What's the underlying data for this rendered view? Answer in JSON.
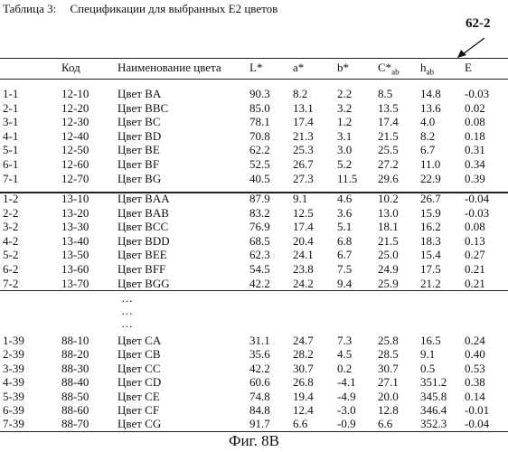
{
  "caption": {
    "label": "Таблица 3:",
    "title": "Спецификации для выбранных E2 цветов"
  },
  "ref_label": "62-2",
  "header": [
    "",
    "Код",
    "Наименование цвета",
    "L*",
    "a*",
    "b*",
    "C*ab",
    "hab",
    "E"
  ],
  "group1": [
    [
      "1-1",
      "12-10",
      "Цвет BA",
      "90.3",
      "8.2",
      "2.2",
      "8.5",
      "14.8",
      "-0.03"
    ],
    [
      "2-1",
      "12-20",
      "Цвет BBC",
      "85.0",
      "13.1",
      "3.2",
      "13.5",
      "13.6",
      "0.02"
    ],
    [
      "3-1",
      "12-30",
      "Цвет BC",
      "78.1",
      "17.4",
      "1.2",
      "17.4",
      "4.0",
      "0.08"
    ],
    [
      "4-1",
      "12-40",
      "Цвет BD",
      "70.8",
      "21.3",
      "3.1",
      "21.5",
      "8.2",
      "0.18"
    ],
    [
      "5-1",
      "12-50",
      "Цвет BE",
      "62.2",
      "25.3",
      "3.0",
      "25.5",
      "6.7",
      "0.31"
    ],
    [
      "6-1",
      "12-60",
      "Цвет BF",
      "52.5",
      "26.7",
      "5.2",
      "27.2",
      "11.0",
      "0.34"
    ],
    [
      "7-1",
      "12-70",
      "Цвет BG",
      "40.5",
      "27.3",
      "11.5",
      "29.6",
      "22.9",
      "0.39"
    ]
  ],
  "group2": [
    [
      "1-2",
      "13-10",
      "Цвет BAA",
      "87.9",
      "9.1",
      "4.6",
      "10.2",
      "26.7",
      "-0.04"
    ],
    [
      "2-2",
      "13-20",
      "Цвет BAB",
      "83.2",
      "12.5",
      "3.6",
      "13.0",
      "15.9",
      "-0.03"
    ],
    [
      "3-2",
      "13-30",
      "Цвет BCC",
      "76.9",
      "17.4",
      "5.1",
      "18.1",
      "16.2",
      "0.08"
    ],
    [
      "4-2",
      "13-40",
      "Цвет BDD",
      "68.5",
      "20.4",
      "6.8",
      "21.5",
      "18.3",
      "0.13"
    ],
    [
      "5-2",
      "13-50",
      "Цвет BEE",
      "62.3",
      "24.1",
      "6.7",
      "25.0",
      "15.4",
      "0.27"
    ],
    [
      "6-2",
      "13-60",
      "Цвет BFF",
      "54.5",
      "23.8",
      "7.5",
      "24.9",
      "17.5",
      "0.21"
    ],
    [
      "7-2",
      "13-70",
      "Цвет BGG",
      "42.2",
      "24.2",
      "9.4",
      "25.9",
      "21.2",
      "0.21"
    ]
  ],
  "ellipsis": [
    "…",
    "…",
    "…"
  ],
  "group3": [
    [
      "1-39",
      "88-10",
      "Цвет CA",
      "31.1",
      "24.7",
      "7.3",
      "25.8",
      "16.5",
      "0.24"
    ],
    [
      "2-39",
      "88-20",
      "Цвет CB",
      "35.6",
      "28.2",
      "4.5",
      "28.5",
      "9.1",
      "0.40"
    ],
    [
      "3-39",
      "88-30",
      "Цвет CC",
      "42.2",
      "30.7",
      "0.2",
      "30.7",
      "0.5",
      "0.53"
    ],
    [
      "4-39",
      "88-40",
      "Цвет CD",
      "60.6",
      "26.8",
      "-4.1",
      "27.1",
      "351.2",
      "0.38"
    ],
    [
      "5-39",
      "88-50",
      "Цвет CE",
      "74.8",
      "19.4",
      "-4.9",
      "20.0",
      "345.8",
      "0.14"
    ],
    [
      "6-39",
      "88-60",
      "Цвет CF",
      "84.8",
      "12.4",
      "-3.0",
      "12.8",
      "346.4",
      "-0.01"
    ],
    [
      "7-39",
      "88-70",
      "Цвет CG",
      "91.7",
      "6.6",
      "-0.9",
      "6.6",
      "352.3",
      "-0.04"
    ]
  ],
  "figure_label": "Фиг. 8B"
}
